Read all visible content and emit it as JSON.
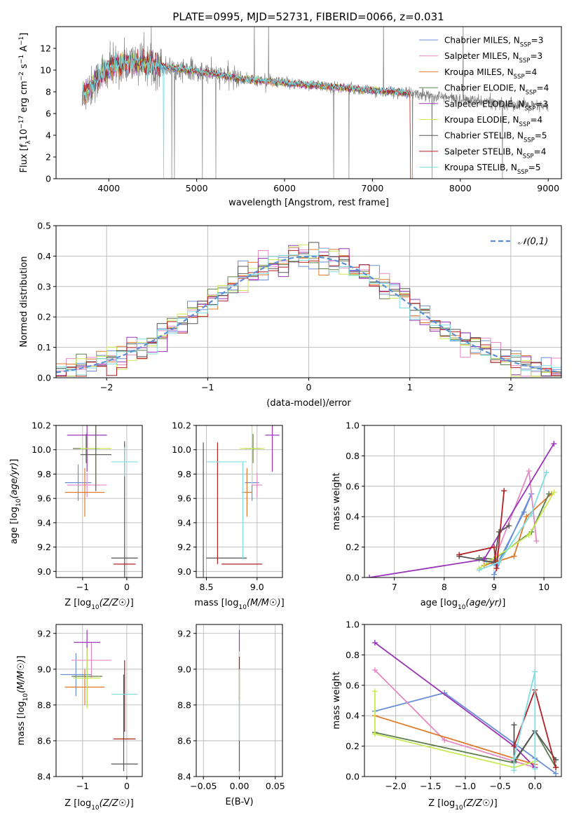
{
  "figure": {
    "title": "PLATE=0995, MJD=52731, FIBERID=0066, z=0.031"
  },
  "models": [
    {
      "name": "Chabrier MILES, N_SSP=3",
      "name_main": "Chabrier MILES, N",
      "name_sub": "SSP",
      "name_tail": "=3",
      "color": "#6a8fd6"
    },
    {
      "name": "Salpeter MILES, N_SSP=3",
      "name_main": "Salpeter MILES, N",
      "name_sub": "SSP",
      "name_tail": "=3",
      "color": "#e689c2"
    },
    {
      "name": "Kroupa MILES, N_SSP=4",
      "name_main": "Kroupa MILES, N",
      "name_sub": "SSP",
      "name_tail": "=4",
      "color": "#e07a2a"
    },
    {
      "name": "Chabrier ELODIE, N_SSP=4",
      "name_main": "Chabrier ELODIE, N",
      "name_sub": "SSP",
      "name_tail": "=4",
      "color": "#5e7f4e"
    },
    {
      "name": "Salpeter ELODIE, N_SSP=3",
      "name_main": "Salpeter ELODIE, N",
      "name_sub": "SSP",
      "name_tail": "=3",
      "color": "#9b35b8"
    },
    {
      "name": "Kroupa ELODIE, N_SSP=4",
      "name_main": "Kroupa ELODIE, N",
      "name_sub": "SSP",
      "name_tail": "=4",
      "color": "#c8ea55"
    },
    {
      "name": "Chabrier STELIB, N_SSP=5",
      "name_main": "Chabrier STELIB, N",
      "name_sub": "SSP",
      "name_tail": "=5",
      "color": "#555555"
    },
    {
      "name": "Salpeter STELIB, N_SSP=4",
      "name_main": "Salpeter STELIB, N",
      "name_sub": "SSP",
      "name_tail": "=4",
      "color": "#b41f22"
    },
    {
      "name": "Kroupa STELIB, N_SSP=5",
      "name_main": "Kroupa STELIB, N",
      "name_sub": "SSP",
      "name_tail": "=5",
      "color": "#7fdde2"
    }
  ],
  "chart_data": [
    {
      "id": "spectrum",
      "type": "line",
      "xlabel": "wavelength [Angstrom, rest frame]",
      "ylabel": "Flux [f_λ 10^-17 erg cm^-2 s^-1 A^-1]",
      "xlim": [
        3400,
        9150
      ],
      "ylim": [
        0,
        14
      ],
      "xticks": [
        4000,
        5000,
        6000,
        7000,
        8000,
        9000
      ],
      "yticks": [
        0,
        2,
        4,
        6,
        8,
        10,
        12
      ],
      "legend_position": "top-right",
      "observed": {
        "color": "#808080",
        "x_range": [
          3700,
          9000
        ]
      },
      "model_x_range": [
        3700,
        7430
      ],
      "continuum": [
        [
          3700,
          7.6
        ],
        [
          3800,
          8.4
        ],
        [
          3900,
          9.5
        ],
        [
          4000,
          10.1
        ],
        [
          4100,
          10.5
        ],
        [
          4300,
          10.7
        ],
        [
          4500,
          10.5
        ],
        [
          4700,
          10.2
        ],
        [
          5000,
          9.9
        ],
        [
          5500,
          9.2
        ],
        [
          6000,
          8.8
        ],
        [
          6500,
          8.5
        ],
        [
          7000,
          8.1
        ],
        [
          7430,
          7.9
        ],
        [
          8000,
          7.3
        ],
        [
          8500,
          6.9
        ],
        [
          9000,
          6.6
        ]
      ]
    },
    {
      "id": "residuals",
      "type": "area",
      "xlabel": "(data-model)/error",
      "ylabel": "Normed distribution",
      "xlim": [
        -2.5,
        2.5
      ],
      "ylim": [
        0,
        0.5
      ],
      "xticks": [
        -2,
        -1,
        0,
        1,
        2
      ],
      "yticks": [
        0.0,
        0.1,
        0.2,
        0.3,
        0.4,
        0.5
      ],
      "bin_width": 0.1,
      "reference": {
        "label": "𝒩(0,1)",
        "mean": 0,
        "sigma": 1,
        "color": "#5b8fd6"
      },
      "legend_position": "top-right"
    },
    {
      "id": "age_vs_Z",
      "type": "scatter",
      "xlabel": "Z [log10(Z/Z☉)]",
      "ylabel": "age [log10(age/yr)]",
      "xlim": [
        -1.6,
        0.35
      ],
      "ylim": [
        8.95,
        10.2
      ],
      "xticks": [
        -1,
        0
      ],
      "yticks": [
        9.0,
        9.2,
        9.4,
        9.6,
        9.8,
        10.0,
        10.2
      ],
      "crosses": [
        {
          "model": 0,
          "x": -1.1,
          "xerr": 0.3,
          "y": 9.73,
          "yerr": 0.15
        },
        {
          "model": 1,
          "x": -0.9,
          "xerr": 0.45,
          "y": 9.71,
          "yerr": 0.1
        },
        {
          "model": 2,
          "x": -0.95,
          "xerr": 0.45,
          "y": 9.65,
          "yerr": 0.2
        },
        {
          "model": 3,
          "x": -0.92,
          "xerr": 0.3,
          "y": 10.01,
          "yerr": 0.12
        },
        {
          "model": 4,
          "x": -0.9,
          "xerr": 0.45,
          "y": 10.12,
          "yerr": 0.3
        },
        {
          "model": 5,
          "x": -0.7,
          "xerr": 0.35,
          "y": 10.01,
          "yerr": 0.3
        },
        {
          "model": 6,
          "x": -0.7,
          "xerr": 0.35,
          "y": 9.96,
          "yerr": 0.3
        },
        {
          "model": 6,
          "x": -0.05,
          "xerr": 0.3,
          "y": 9.11,
          "yerr": 0.96
        },
        {
          "model": 7,
          "x": -0.05,
          "xerr": 0.25,
          "y": 9.06,
          "yerr": 0.0
        },
        {
          "model": 8,
          "x": -0.05,
          "xerr": 0.3,
          "y": 9.9,
          "yerr": 0.12
        }
      ]
    },
    {
      "id": "age_vs_mass",
      "type": "scatter",
      "xlabel": "mass [log10(M/M☉)]",
      "ylabel": "",
      "xlim": [
        8.4,
        9.25
      ],
      "ylim": [
        8.95,
        10.2
      ],
      "xticks": [
        8.5,
        9.0
      ],
      "yticks": [
        9.0,
        9.2,
        9.4,
        9.6,
        9.8,
        10.0,
        10.2
      ],
      "crosses": [
        {
          "model": 0,
          "x": 8.95,
          "xerr": 0.07,
          "y": 9.73,
          "yerr": 0.15
        },
        {
          "model": 1,
          "x": 9.0,
          "xerr": 0.05,
          "y": 9.71,
          "yerr": 0.1
        },
        {
          "model": 2,
          "x": 8.9,
          "xerr": 0.05,
          "y": 9.65,
          "yerr": 0.2
        },
        {
          "model": 3,
          "x": 8.96,
          "xerr": 0.08,
          "y": 10.01,
          "yerr": 0.12
        },
        {
          "model": 4,
          "x": 9.15,
          "xerr": 0.07,
          "y": 10.12,
          "yerr": 0.3
        },
        {
          "model": 5,
          "x": 8.95,
          "xerr": 0.12,
          "y": 10.01,
          "yerr": 0.3
        },
        {
          "model": 6,
          "x": 8.47,
          "xerr": 0.0,
          "y": 9.5,
          "yerr": 0.56
        },
        {
          "model": 6,
          "x": 8.7,
          "xerr": 0.2,
          "y": 9.11,
          "yerr": 0.0
        },
        {
          "model": 7,
          "x": 8.61,
          "xerr": 0.0,
          "y": 9.56,
          "yerr": 0.5
        },
        {
          "model": 7,
          "x": 8.85,
          "xerr": 0.2,
          "y": 9.06,
          "yerr": 0.0
        },
        {
          "model": 8,
          "x": 8.86,
          "xerr": 0.0,
          "y": 9.5,
          "yerr": 0.4
        },
        {
          "model": 8,
          "x": 8.7,
          "xerr": 0.2,
          "y": 9.9,
          "yerr": 0.0
        }
      ]
    },
    {
      "id": "weight_vs_age",
      "type": "line",
      "xlabel": "age [log10(age/yr)]",
      "ylabel": "mass weight",
      "xlim": [
        6.4,
        10.35
      ],
      "ylim": [
        0.0,
        1.0
      ],
      "xticks": [
        7,
        8,
        9,
        10
      ],
      "yticks": [
        0.0,
        0.2,
        0.4,
        0.6,
        0.8,
        1.0
      ],
      "series": [
        {
          "model": 0,
          "points": [
            [
              8.7,
              0.12
            ],
            [
              9.05,
              0.08
            ],
            [
              9.6,
              0.43
            ],
            [
              9.75,
              0.55
            ],
            [
              9.0,
              0.02
            ]
          ]
        },
        {
          "model": 1,
          "points": [
            [
              9.0,
              0.11
            ],
            [
              9.7,
              0.7
            ],
            [
              9.85,
              0.24
            ]
          ]
        },
        {
          "model": 2,
          "points": [
            [
              8.8,
              0.08
            ],
            [
              9.4,
              0.14
            ],
            [
              9.65,
              0.4
            ],
            [
              10.15,
              0.55
            ]
          ]
        },
        {
          "model": 3,
          "points": [
            [
              8.7,
              0.13
            ],
            [
              9.0,
              0.12
            ],
            [
              9.75,
              0.3
            ],
            [
              10.1,
              0.55
            ]
          ]
        },
        {
          "model": 4,
          "points": [
            [
              6.5,
              0.0
            ],
            [
              8.8,
              0.12
            ],
            [
              10.2,
              0.88
            ]
          ]
        },
        {
          "model": 5,
          "points": [
            [
              8.7,
              0.06
            ],
            [
              9.7,
              0.28
            ],
            [
              10.2,
              0.56
            ]
          ]
        },
        {
          "model": 6,
          "points": [
            [
              8.3,
              0.14
            ],
            [
              9.0,
              0.1
            ],
            [
              9.1,
              0.3
            ],
            [
              9.3,
              0.34
            ]
          ]
        },
        {
          "model": 7,
          "points": [
            [
              8.3,
              0.15
            ],
            [
              9.0,
              0.2
            ],
            [
              9.05,
              0.06
            ],
            [
              9.2,
              0.57
            ]
          ]
        },
        {
          "model": 8,
          "points": [
            [
              8.7,
              0.05
            ],
            [
              9.1,
              0.1
            ],
            [
              9.75,
              0.42
            ],
            [
              10.05,
              0.69
            ]
          ]
        }
      ]
    },
    {
      "id": "mass_vs_Z",
      "type": "scatter",
      "xlabel": "Z [log10(Z/Z☉)]",
      "ylabel": "mass [log10(M/M☉)]",
      "xlim": [
        -1.6,
        0.35
      ],
      "ylim": [
        8.4,
        9.25
      ],
      "xticks": [
        -1,
        0
      ],
      "yticks": [
        8.4,
        8.6,
        8.8,
        9.0,
        9.2
      ],
      "crosses": [
        {
          "model": 0,
          "x": -1.15,
          "xerr": 0.35,
          "y": 8.97,
          "yerr": 0.12
        },
        {
          "model": 1,
          "x": -0.8,
          "xerr": 0.45,
          "y": 9.05,
          "yerr": 0.1
        },
        {
          "model": 2,
          "x": -0.95,
          "xerr": 0.45,
          "y": 8.9,
          "yerr": 0.1
        },
        {
          "model": 3,
          "x": -0.9,
          "xerr": 0.35,
          "y": 8.96,
          "yerr": 0.17
        },
        {
          "model": 4,
          "x": -0.9,
          "xerr": 0.3,
          "y": 9.15,
          "yerr": 0.07
        },
        {
          "model": 5,
          "x": -0.9,
          "xerr": 0.3,
          "y": 8.95,
          "yerr": 0.17
        },
        {
          "model": 6,
          "x": -0.05,
          "xerr": 0.3,
          "y": 8.47,
          "yerr": 0.0
        },
        {
          "model": 6,
          "x": -0.07,
          "xerr": 0.0,
          "y": 8.7,
          "yerr": 0.27
        },
        {
          "model": 7,
          "x": -0.05,
          "xerr": 0.25,
          "y": 8.61,
          "yerr": 0.0
        },
        {
          "model": 7,
          "x": -0.05,
          "xerr": 0.0,
          "y": 8.85,
          "yerr": 0.2
        },
        {
          "model": 8,
          "x": -0.05,
          "xerr": 0.3,
          "y": 8.86,
          "yerr": 0.0
        }
      ]
    },
    {
      "id": "mass_vs_ebv",
      "type": "scatter",
      "xlabel": "E(B-V)",
      "ylabel": "",
      "xlim": [
        -0.06,
        0.06
      ],
      "ylim": [
        8.4,
        9.25
      ],
      "xticks": [
        -0.05,
        0.0,
        0.05
      ],
      "yticks": [
        8.4,
        8.6,
        8.8,
        9.0,
        9.2
      ],
      "crosses": [
        {
          "model": 4,
          "x": 0.0,
          "xerr": 0.0,
          "y": 9.1,
          "yerr": 0.12
        },
        {
          "model": 5,
          "x": 0.0,
          "xerr": 0.0,
          "y": 8.95,
          "yerr": 0.15
        },
        {
          "model": 7,
          "x": 0.0,
          "xerr": 0.0,
          "y": 8.95,
          "yerr": 0.12
        },
        {
          "model": 6,
          "x": 0.0,
          "xerr": 0.0,
          "y": 8.7,
          "yerr": 0.27
        },
        {
          "model": 8,
          "x": 0.0,
          "xerr": 0.0,
          "y": 8.8,
          "yerr": 0.2
        }
      ]
    },
    {
      "id": "weight_vs_Z",
      "type": "line",
      "xlabel": "Z [log10(Z/Z☉)]",
      "ylabel": "mass weight",
      "xlim": [
        -2.45,
        0.38
      ],
      "ylim": [
        0.0,
        1.0
      ],
      "xticks": [
        -2.0,
        -1.5,
        -1.0,
        -0.5,
        0.0
      ],
      "yticks": [
        0.0,
        0.2,
        0.4,
        0.6,
        0.8,
        1.0
      ],
      "series": [
        {
          "model": 0,
          "points": [
            [
              -2.3,
              0.43
            ],
            [
              -1.3,
              0.55
            ],
            [
              0.0,
              0.12
            ],
            [
              0.3,
              0.02
            ]
          ]
        },
        {
          "model": 1,
          "points": [
            [
              -2.3,
              0.7
            ],
            [
              -1.3,
              0.24
            ],
            [
              0.0,
              0.06
            ]
          ]
        },
        {
          "model": 2,
          "points": [
            [
              -2.3,
              0.4
            ],
            [
              -0.3,
              0.12
            ],
            [
              0.0,
              0.08
            ]
          ]
        },
        {
          "model": 3,
          "points": [
            [
              -2.3,
              0.29
            ],
            [
              -0.3,
              0.09
            ],
            [
              0.0,
              0.3
            ],
            [
              0.3,
              0.06
            ]
          ]
        },
        {
          "model": 4,
          "points": [
            [
              -2.3,
              0.88
            ],
            [
              -0.3,
              0.2
            ],
            [
              0.0,
              0.06
            ]
          ]
        },
        {
          "model": 5,
          "points": [
            [
              -2.3,
              0.56
            ],
            [
              -2.3,
              0.28
            ],
            [
              -0.3,
              0.06
            ],
            [
              0.0,
              0.1
            ]
          ]
        },
        {
          "model": 6,
          "points": [
            [
              -0.3,
              0.34
            ],
            [
              -0.3,
              0.1
            ],
            [
              0.0,
              0.3
            ],
            [
              0.3,
              0.11
            ]
          ]
        },
        {
          "model": 7,
          "points": [
            [
              -0.3,
              0.2
            ],
            [
              0.0,
              0.57
            ],
            [
              0.3,
              0.06
            ]
          ]
        },
        {
          "model": 8,
          "points": [
            [
              -0.3,
              0.04
            ],
            [
              -0.3,
              0.12
            ],
            [
              0.0,
              0.69
            ],
            [
              0.0,
              0.05
            ]
          ]
        }
      ]
    }
  ]
}
